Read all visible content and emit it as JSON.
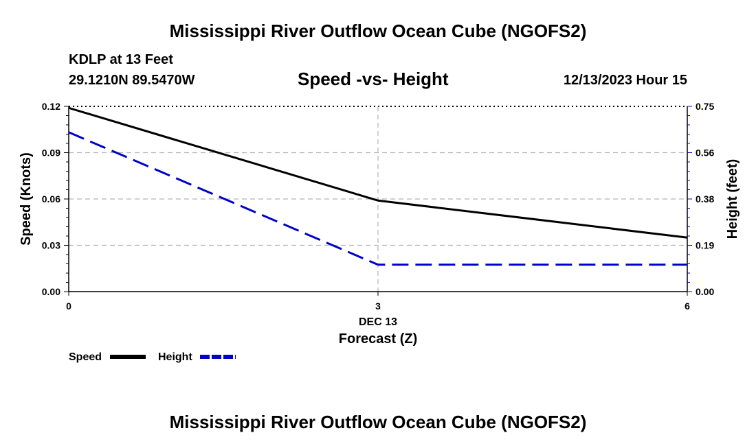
{
  "header": {
    "title": "Mississippi River Outflow Ocean Cube (NGOFS2)",
    "station": "KDLP at 13 Feet",
    "coords": "29.1210N  89.5470W",
    "subtitle": "Speed -vs- Height",
    "datetime": "12/13/2023 Hour 15"
  },
  "footer": {
    "title": "Mississippi River Outflow Ocean Cube (NGOFS2)"
  },
  "colors": {
    "speed": "#000000",
    "height": "#0000cc",
    "grid": "#b4b4b4"
  },
  "chart_data": {
    "type": "line",
    "title": "Speed -vs- Height",
    "x": [
      0,
      3,
      6
    ],
    "x_ticks": [
      0,
      3,
      6
    ],
    "x_tick_labels": [
      "0",
      "3",
      "6"
    ],
    "xlim": [
      0,
      6
    ],
    "x_date_label": "DEC 13",
    "xlabel": "Forecast (Z)",
    "ylabel_left": "Speed (Knots)",
    "ylabel_right": "Height (feet)",
    "ylim_left": [
      0,
      0.12
    ],
    "ylim_right": [
      0,
      0.75
    ],
    "yticks_left": [
      "0.00",
      "0.03",
      "0.06",
      "0.09",
      "0.12"
    ],
    "yticks_right": [
      "0.00",
      "0.19",
      "0.38",
      "0.56",
      "0.75"
    ],
    "series": [
      {
        "name": "Speed",
        "axis": "left",
        "style": "solid",
        "values": [
          0.119,
          0.059,
          0.035
        ]
      },
      {
        "name": "Height",
        "axis": "right",
        "style": "dashed",
        "values": [
          0.645,
          0.109,
          0.109
        ]
      }
    ],
    "legend": [
      "Speed",
      "Height"
    ],
    "legend_position": "bottom-left",
    "grid": true
  }
}
